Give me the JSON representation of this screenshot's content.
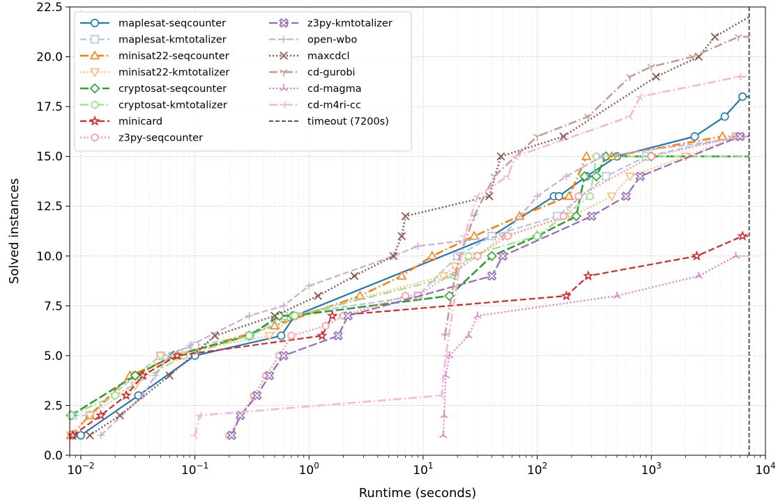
{
  "chart_data": {
    "type": "line",
    "xlabel": "Runtime (seconds)",
    "ylabel": "Solved instances",
    "x_scale": "log",
    "xlim": [
      0.008,
      10000
    ],
    "ylim": [
      0,
      22.5
    ],
    "x_ticks": [
      {
        "value": 0.01,
        "base": "10",
        "exp": "−2"
      },
      {
        "value": 0.1,
        "base": "10",
        "exp": "−1"
      },
      {
        "value": 1,
        "base": "10",
        "exp": "0"
      },
      {
        "value": 10,
        "base": "10",
        "exp": "1"
      },
      {
        "value": 100,
        "base": "10",
        "exp": "2"
      },
      {
        "value": 1000,
        "base": "10",
        "exp": "3"
      },
      {
        "value": 10000,
        "base": "10",
        "exp": "4"
      }
    ],
    "y_ticks": [
      {
        "value": 0,
        "label": "0.0"
      },
      {
        "value": 2.5,
        "label": "2.5"
      },
      {
        "value": 5,
        "label": "5.0"
      },
      {
        "value": 7.5,
        "label": "7.5"
      },
      {
        "value": 10,
        "label": "10.0"
      },
      {
        "value": 12.5,
        "label": "12.5"
      },
      {
        "value": 15,
        "label": "15.0"
      },
      {
        "value": 17.5,
        "label": "17.5"
      },
      {
        "value": 20,
        "label": "20.0"
      },
      {
        "value": 22.5,
        "label": "22.5"
      }
    ],
    "grid": true,
    "legend_position": "top-left",
    "timeout": {
      "name": "timeout (7200s)",
      "x": 7200,
      "color": "#555555"
    },
    "series": [
      {
        "name": "maplesat-seqcounter",
        "color": "#1f77b4",
        "dash": "",
        "width": 2.2,
        "marker": "circle",
        "x": [
          0.0085,
          0.01,
          0.032,
          0.1,
          0.57,
          0.75,
          40,
          140,
          155,
          270,
          500,
          2400,
          4400,
          6300,
          7200
        ],
        "y": [
          1,
          1,
          3,
          5,
          6,
          7,
          11,
          13,
          13,
          14,
          15,
          16,
          17,
          18,
          18
        ]
      },
      {
        "name": "maplesat-kmtotalizer",
        "color": "#aec7e8",
        "dash": "9,4",
        "width": 2.2,
        "marker": "square",
        "x": [
          0.0085,
          0.012,
          0.03,
          0.05,
          0.1,
          0.3,
          0.6,
          9,
          20,
          40,
          150,
          400,
          900,
          5500,
          7200
        ],
        "y": [
          2,
          2,
          4,
          5,
          5.5,
          6,
          7,
          8,
          10,
          11,
          12,
          14,
          15,
          16,
          16
        ]
      },
      {
        "name": "minisat22-seqcounter",
        "color": "#ff7f0e",
        "dash": "12,4,2,4",
        "width": 2.6,
        "marker": "triangle",
        "x": [
          0.0082,
          0.012,
          0.027,
          0.07,
          0.5,
          2.8,
          6.5,
          12,
          28,
          70,
          190,
          270,
          450,
          4200,
          7200
        ],
        "y": [
          1,
          2,
          4,
          5,
          6.5,
          8,
          9,
          10,
          11,
          12,
          13,
          15,
          15,
          16,
          16
        ]
      },
      {
        "name": "minisat22-kmtotalizer",
        "color": "#ffbb78",
        "dash": "2,3",
        "width": 2.2,
        "marker": "triangle-down",
        "x": [
          0.0082,
          0.012,
          0.03,
          0.05,
          0.45,
          0.75,
          15,
          19,
          30,
          50,
          200,
          450,
          650,
          2000,
          5700,
          7200
        ],
        "y": [
          1,
          2,
          3.5,
          5,
          6,
          7,
          9,
          9.5,
          10,
          11,
          12,
          13,
          14,
          15,
          16,
          16
        ]
      },
      {
        "name": "cryptosat-seqcounter",
        "color": "#2ca02c",
        "dash": "12,4",
        "width": 2.6,
        "marker": "diamond",
        "x": [
          0.0082,
          0.03,
          0.065,
          0.3,
          0.55,
          0.72,
          17,
          40,
          100,
          220,
          260,
          330,
          400,
          1000,
          7200
        ],
        "y": [
          2,
          4,
          5,
          6,
          7,
          7,
          8,
          10,
          11,
          12,
          14,
          14,
          15,
          15,
          15
        ]
      },
      {
        "name": "cryptosat-kmtotalizer",
        "color": "#98df8a",
        "dash": "12,4,2,4",
        "width": 2.2,
        "marker": "hexagon",
        "x": [
          0.0082,
          0.02,
          0.08,
          0.3,
          0.75,
          19,
          25,
          100,
          290,
          330,
          1000,
          7200
        ],
        "y": [
          2,
          3,
          5,
          6,
          7,
          9,
          10,
          11,
          13,
          15,
          15,
          15
        ]
      },
      {
        "name": "minicard",
        "color": "#d62728",
        "dash": "9,4",
        "width": 2.2,
        "marker": "star",
        "x": [
          0.0085,
          0.015,
          0.025,
          0.035,
          0.07,
          1.3,
          1.6,
          180,
          280,
          2500,
          6300,
          7200
        ],
        "y": [
          1,
          2,
          3,
          4,
          5,
          6,
          7,
          8,
          9,
          10,
          11,
          11
        ]
      },
      {
        "name": "z3py-seqcounter",
        "color": "#ff9896",
        "dash": "2,3",
        "width": 2.4,
        "marker": "hexagon",
        "x": [
          0.2,
          0.33,
          0.42,
          0.55,
          0.7,
          1.4,
          2,
          7,
          9,
          30,
          55,
          170,
          230,
          1000,
          5900,
          7200
        ],
        "y": [
          1,
          3,
          4,
          5,
          6,
          6.5,
          7,
          8,
          8,
          10,
          11,
          12,
          13,
          15,
          16,
          16
        ]
      },
      {
        "name": "z3py-kmtotalizer",
        "color": "#9467bd",
        "dash": "12,4",
        "width": 2.2,
        "marker": "x-filled",
        "x": [
          0.21,
          0.25,
          0.35,
          0.45,
          0.6,
          1.8,
          2.2,
          40,
          50,
          300,
          600,
          800,
          6000,
          7200
        ],
        "y": [
          1,
          2,
          3,
          4,
          5,
          6,
          7,
          9,
          10,
          12,
          13,
          14,
          16,
          16
        ]
      },
      {
        "name": "open-wbo",
        "color": "#c5b0d5",
        "dash": "9,4",
        "width": 2.2,
        "marker": "plus",
        "x": [
          0.015,
          0.035,
          0.045,
          0.06,
          0.09,
          0.3,
          0.6,
          1,
          5.5,
          9,
          50,
          100,
          180,
          370,
          7200
        ],
        "y": [
          1,
          3,
          4,
          5,
          5.5,
          7,
          7.5,
          8.5,
          10,
          10.5,
          11,
          13,
          14,
          15,
          16
        ]
      },
      {
        "name": "maxcdcl",
        "color": "#8c564b",
        "dash": "2,3",
        "width": 2.6,
        "marker": "x",
        "x": [
          0.012,
          0.022,
          0.06,
          0.15,
          0.5,
          1.2,
          2.5,
          5.5,
          6.5,
          7,
          38,
          48,
          170,
          1100,
          2600,
          3600,
          7200
        ],
        "y": [
          1,
          2,
          4,
          6,
          7,
          8,
          9,
          10,
          11,
          12,
          13,
          15,
          16,
          19,
          20,
          21,
          22
        ]
      },
      {
        "name": "cd-gurobi",
        "color": "#c49c94",
        "dash": "12,4,2,4",
        "width": 2.6,
        "marker": "tri-down",
        "x": [
          15.5,
          19,
          21,
          28,
          42,
          100,
          280,
          650,
          1000,
          2300,
          5800,
          7200
        ],
        "y": [
          6,
          9,
          10,
          12,
          14,
          16,
          17,
          19,
          19.5,
          20,
          21,
          21
        ]
      },
      {
        "name": "cd-magma",
        "color": "#e377c2",
        "dash": "2,3",
        "width": 2.2,
        "marker": "tri-up",
        "x": [
          15,
          15.3,
          15.8,
          17,
          25,
          30,
          500,
          2600,
          5500,
          7200
        ],
        "y": [
          1,
          2,
          4,
          5,
          6,
          7,
          8,
          9,
          10,
          10
        ]
      },
      {
        "name": "cd-m4ri-cc",
        "color": "#f7b6d2",
        "dash": "12,4,2,4",
        "width": 2.6,
        "marker": "tri-left",
        "x": [
          0.1,
          0.11,
          14.5,
          15.8,
          23,
          30,
          55,
          65,
          650,
          800,
          5900,
          7200
        ],
        "y": [
          1,
          2,
          3,
          5,
          11,
          13,
          14,
          15,
          17,
          18,
          19,
          19
        ]
      }
    ]
  }
}
